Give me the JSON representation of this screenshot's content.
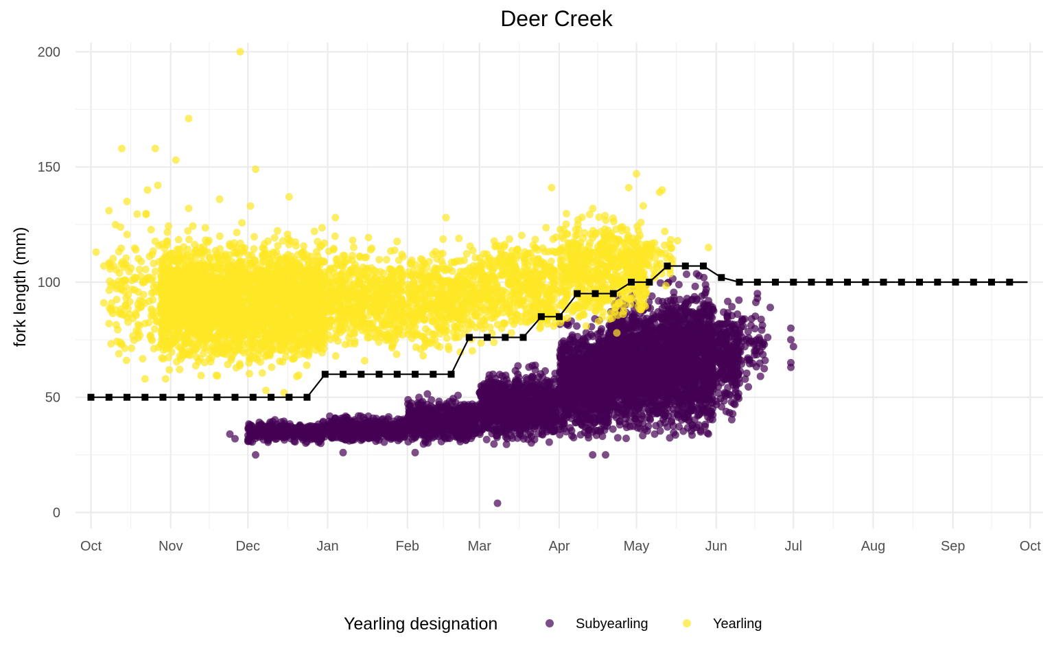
{
  "chart_data": {
    "type": "scatter",
    "title": "Deer Creek",
    "xlabel": "",
    "ylabel": "fork length (mm)",
    "xlim": [
      "2000-09-25",
      "2001-10-06"
    ],
    "ylim": [
      -7,
      204
    ],
    "x_ticks": [
      {
        "date": "2000-10-01",
        "label": "Oct"
      },
      {
        "date": "2000-11-01",
        "label": "Nov"
      },
      {
        "date": "2000-12-01",
        "label": "Dec"
      },
      {
        "date": "2001-01-01",
        "label": "Jan"
      },
      {
        "date": "2001-02-01",
        "label": "Feb"
      },
      {
        "date": "2001-03-01",
        "label": "Mar"
      },
      {
        "date": "2001-04-01",
        "label": "Apr"
      },
      {
        "date": "2001-05-01",
        "label": "May"
      },
      {
        "date": "2001-06-01",
        "label": "Jun"
      },
      {
        "date": "2001-07-01",
        "label": "Jul"
      },
      {
        "date": "2001-08-01",
        "label": "Aug"
      },
      {
        "date": "2001-09-01",
        "label": "Sep"
      },
      {
        "date": "2001-10-01",
        "label": "Oct"
      }
    ],
    "y_ticks": [
      0,
      50,
      100,
      150,
      200
    ],
    "grid": true,
    "legend": {
      "title": "Yearling designation",
      "position": "bottom"
    },
    "series": [
      {
        "name": "Subyearling",
        "color": "#440154",
        "opacity": 0.7,
        "clusters": [
          {
            "x_from": "2000-12-01",
            "x_to": "2000-12-31",
            "y_from": 30,
            "y_to": 40,
            "n": 350
          },
          {
            "x_from": "2001-01-01",
            "x_to": "2001-01-31",
            "y_from": 30,
            "y_to": 42,
            "n": 450
          },
          {
            "x_from": "2001-02-01",
            "x_to": "2001-02-28",
            "y_from": 30,
            "y_to": 50,
            "n": 650
          },
          {
            "x_from": "2001-03-01",
            "x_to": "2001-03-31",
            "y_from": 30,
            "y_to": 62,
            "n": 1000
          },
          {
            "x_from": "2001-04-01",
            "x_to": "2001-04-20",
            "y_from": 32,
            "y_to": 82,
            "n": 1000
          },
          {
            "x_from": "2001-04-20",
            "x_to": "2001-05-10",
            "y_from": 33,
            "y_to": 95,
            "n": 1200
          },
          {
            "x_from": "2001-05-10",
            "x_to": "2001-05-31",
            "y_from": 33,
            "y_to": 100,
            "n": 1300
          },
          {
            "x_from": "2001-06-01",
            "x_to": "2001-06-10",
            "y_from": 40,
            "y_to": 95,
            "n": 250
          },
          {
            "x_from": "2001-06-10",
            "x_to": "2001-06-20",
            "y_from": 55,
            "y_to": 90,
            "n": 60
          }
        ],
        "points": [
          {
            "x": "2000-12-01",
            "y": 31
          },
          {
            "x": "2000-12-04",
            "y": 25
          },
          {
            "x": "2000-11-24",
            "y": 34
          },
          {
            "x": "2000-11-26",
            "y": 32
          },
          {
            "x": "2001-03-08",
            "y": 4
          },
          {
            "x": "2001-04-14",
            "y": 25
          },
          {
            "x": "2001-04-19",
            "y": 25
          },
          {
            "x": "2001-01-07",
            "y": 26
          },
          {
            "x": "2001-02-04",
            "y": 26
          },
          {
            "x": "2001-06-17",
            "y": 95
          },
          {
            "x": "2001-06-17",
            "y": 93
          },
          {
            "x": "2001-06-22",
            "y": 89
          },
          {
            "x": "2001-06-30",
            "y": 80
          },
          {
            "x": "2001-06-30",
            "y": 75
          },
          {
            "x": "2001-07-01",
            "y": 72
          },
          {
            "x": "2001-06-30",
            "y": 65
          },
          {
            "x": "2001-06-30",
            "y": 63
          },
          {
            "x": "2001-06-20",
            "y": 66
          },
          {
            "x": "2001-06-18",
            "y": 70
          },
          {
            "x": "2001-06-21",
            "y": 76
          }
        ]
      },
      {
        "name": "Yearling",
        "color": "#FDE725",
        "opacity": 0.7,
        "clusters": [
          {
            "x_from": "2000-10-08",
            "x_to": "2000-10-28",
            "y_from": 60,
            "y_to": 130,
            "n": 150
          },
          {
            "x_from": "2000-10-28",
            "x_to": "2000-11-30",
            "y_from": 62,
            "y_to": 122,
            "n": 1400
          },
          {
            "x_from": "2000-12-01",
            "x_to": "2000-12-31",
            "y_from": 62,
            "y_to": 120,
            "n": 1200
          },
          {
            "x_from": "2001-01-01",
            "x_to": "2001-01-31",
            "y_from": 68,
            "y_to": 118,
            "n": 550
          },
          {
            "x_from": "2001-02-01",
            "x_to": "2001-02-28",
            "y_from": 68,
            "y_to": 118,
            "n": 450
          },
          {
            "x_from": "2001-03-01",
            "x_to": "2001-03-31",
            "y_from": 75,
            "y_to": 122,
            "n": 450
          },
          {
            "x_from": "2001-04-01",
            "x_to": "2001-05-05",
            "y_from": 80,
            "y_to": 130,
            "n": 600
          },
          {
            "x_from": "2001-05-05",
            "x_to": "2001-05-15",
            "y_from": 95,
            "y_to": 125,
            "n": 40
          }
        ],
        "points": [
          {
            "x": "2000-10-03",
            "y": 113
          },
          {
            "x": "2000-10-06",
            "y": 91
          },
          {
            "x": "2000-10-08",
            "y": 82
          },
          {
            "x": "2000-10-06",
            "y": 107
          },
          {
            "x": "2000-10-08",
            "y": 131
          },
          {
            "x": "2000-10-13",
            "y": 158
          },
          {
            "x": "2000-10-15",
            "y": 135
          },
          {
            "x": "2000-10-23",
            "y": 140
          },
          {
            "x": "2000-10-26",
            "y": 158
          },
          {
            "x": "2000-10-27",
            "y": 142
          },
          {
            "x": "2000-11-03",
            "y": 153
          },
          {
            "x": "2000-11-08",
            "y": 132
          },
          {
            "x": "2000-11-08",
            "y": 171
          },
          {
            "x": "2000-11-28",
            "y": 200
          },
          {
            "x": "2000-12-04",
            "y": 149
          },
          {
            "x": "2000-12-17",
            "y": 137
          },
          {
            "x": "2000-11-20",
            "y": 136
          },
          {
            "x": "2000-12-02",
            "y": 133
          },
          {
            "x": "2000-12-08",
            "y": 53
          },
          {
            "x": "2000-12-15",
            "y": 52
          },
          {
            "x": "2000-12-20",
            "y": 59
          },
          {
            "x": "2000-10-22",
            "y": 58
          },
          {
            "x": "2000-10-30",
            "y": 58
          },
          {
            "x": "2001-01-04",
            "y": 128
          },
          {
            "x": "2001-02-16",
            "y": 128
          },
          {
            "x": "2001-02-21",
            "y": 119
          },
          {
            "x": "2001-03-29",
            "y": 141
          },
          {
            "x": "2001-04-28",
            "y": 141
          },
          {
            "x": "2001-05-01",
            "y": 147
          },
          {
            "x": "2001-05-10",
            "y": 139
          },
          {
            "x": "2001-05-11",
            "y": 140
          },
          {
            "x": "2001-05-17",
            "y": 118
          },
          {
            "x": "2001-05-29",
            "y": 115
          },
          {
            "x": "2001-05-12",
            "y": 122
          },
          {
            "x": "2001-05-08",
            "y": 117
          }
        ]
      }
    ],
    "line": {
      "color": "#000000",
      "marker": "square",
      "points": [
        {
          "x": "2000-10-01",
          "y": 50
        },
        {
          "x": "2000-10-08",
          "y": 50
        },
        {
          "x": "2000-10-15",
          "y": 50
        },
        {
          "x": "2000-10-22",
          "y": 50
        },
        {
          "x": "2000-10-29",
          "y": 50
        },
        {
          "x": "2000-11-05",
          "y": 50
        },
        {
          "x": "2000-11-12",
          "y": 50
        },
        {
          "x": "2000-11-19",
          "y": 50
        },
        {
          "x": "2000-11-26",
          "y": 50
        },
        {
          "x": "2000-12-03",
          "y": 50
        },
        {
          "x": "2000-12-10",
          "y": 50
        },
        {
          "x": "2000-12-17",
          "y": 50
        },
        {
          "x": "2000-12-24",
          "y": 50
        },
        {
          "x": "2000-12-31",
          "y": 60
        },
        {
          "x": "2001-01-07",
          "y": 60
        },
        {
          "x": "2001-01-14",
          "y": 60
        },
        {
          "x": "2001-01-21",
          "y": 60
        },
        {
          "x": "2001-01-28",
          "y": 60
        },
        {
          "x": "2001-02-04",
          "y": 60
        },
        {
          "x": "2001-02-11",
          "y": 60
        },
        {
          "x": "2001-02-18",
          "y": 60
        },
        {
          "x": "2001-02-25",
          "y": 76
        },
        {
          "x": "2001-03-04",
          "y": 76
        },
        {
          "x": "2001-03-11",
          "y": 76
        },
        {
          "x": "2001-03-18",
          "y": 76
        },
        {
          "x": "2001-03-25",
          "y": 85
        },
        {
          "x": "2001-04-01",
          "y": 85
        },
        {
          "x": "2001-04-08",
          "y": 95
        },
        {
          "x": "2001-04-15",
          "y": 95
        },
        {
          "x": "2001-04-22",
          "y": 95
        },
        {
          "x": "2001-04-29",
          "y": 100
        },
        {
          "x": "2001-05-06",
          "y": 100
        },
        {
          "x": "2001-05-13",
          "y": 107
        },
        {
          "x": "2001-05-20",
          "y": 107
        },
        {
          "x": "2001-05-27",
          "y": 107
        },
        {
          "x": "2001-06-03",
          "y": 102
        },
        {
          "x": "2001-06-10",
          "y": 100
        },
        {
          "x": "2001-06-17",
          "y": 100
        },
        {
          "x": "2001-06-24",
          "y": 100
        },
        {
          "x": "2001-07-01",
          "y": 100
        },
        {
          "x": "2001-07-08",
          "y": 100
        },
        {
          "x": "2001-07-15",
          "y": 100
        },
        {
          "x": "2001-07-22",
          "y": 100
        },
        {
          "x": "2001-07-29",
          "y": 100
        },
        {
          "x": "2001-08-05",
          "y": 100
        },
        {
          "x": "2001-08-12",
          "y": 100
        },
        {
          "x": "2001-08-19",
          "y": 100
        },
        {
          "x": "2001-08-26",
          "y": 100
        },
        {
          "x": "2001-09-02",
          "y": 100
        },
        {
          "x": "2001-09-09",
          "y": 100
        },
        {
          "x": "2001-09-16",
          "y": 100
        },
        {
          "x": "2001-09-23",
          "y": 100
        },
        {
          "x": "2001-09-30",
          "y": 100
        }
      ],
      "end": {
        "x": "2001-09-30",
        "y": 100
      }
    }
  }
}
